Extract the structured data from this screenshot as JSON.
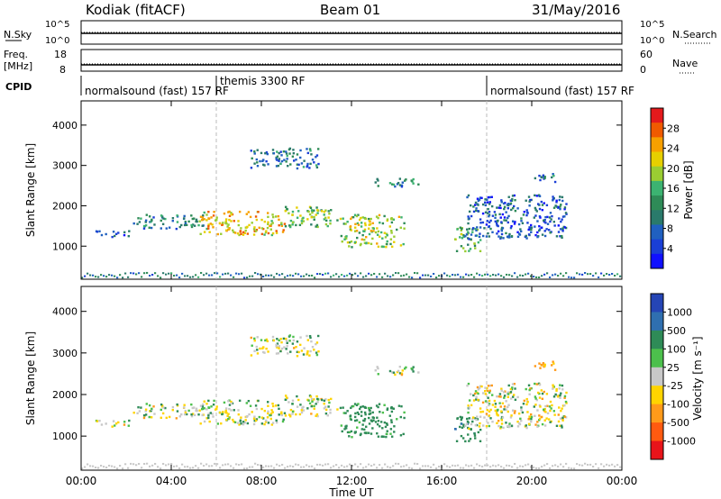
{
  "header": {
    "station": "Kodiak (fitACF)",
    "beam": "Beam 01",
    "date": "31/May/2016"
  },
  "status_panels": {
    "nsky_label": "N.Sky",
    "nsky_ticks": [
      "10^5",
      "10^0"
    ],
    "nsearch_label": "N.Search",
    "nsearch_ticks": [
      "10^5",
      "10^0"
    ],
    "freq_label_line1": "Freq.",
    "freq_label_line2": "[MHz]",
    "freq_ticks": [
      "18",
      "8"
    ],
    "nave_label": "Nave",
    "nave_ticks": [
      "60",
      "0"
    ],
    "cpid_label": "CPID",
    "cpid_segments": [
      {
        "label": "normalsound (fast) 157 RF",
        "start_hour": 0
      },
      {
        "label": "themis 3300 RF",
        "start_hour": 6
      },
      {
        "label": "normalsound (fast) 157 RF",
        "start_hour": 18
      }
    ]
  },
  "power_colorbar": {
    "label": "Power [dB]",
    "ticks": [
      "28",
      "24",
      "20",
      "16",
      "12",
      "8",
      "4"
    ],
    "colors": [
      "#e41a1c",
      "#f05a00",
      "#f7a000",
      "#e6cf00",
      "#9acd32",
      "#3cb371",
      "#2e8b57",
      "#2a7a6b",
      "#2060c0",
      "#1a3fd6",
      "#1010ff"
    ]
  },
  "velocity_colorbar": {
    "label": "Velocity [m s⁻¹]",
    "ticks": [
      "1000",
      "500",
      "100",
      "25",
      "-25",
      "-100",
      "-500",
      "-1000"
    ],
    "colors": [
      "#2545b5",
      "#2f6fb0",
      "#2e8b57",
      "#4cc04c",
      "#c8c8c8",
      "#ffd400",
      "#ff9a1a",
      "#ff5a10",
      "#e8141a"
    ]
  },
  "chart_data": {
    "type": "heatmap",
    "x_axis": {
      "label": "Time UT",
      "range_hours": [
        0,
        24
      ],
      "ticks": [
        "00:00",
        "04:00",
        "08:00",
        "12:00",
        "16:00",
        "20:00",
        "00:00"
      ]
    },
    "y_axis": {
      "label": "Slant Range [km]",
      "range_km": [
        180,
        4600
      ],
      "ticks": [
        "1000",
        "2000",
        "3000",
        "4000"
      ]
    },
    "panels": [
      {
        "name": "Power",
        "quantity": "Power [dB]"
      },
      {
        "name": "Velocity",
        "quantity": "Velocity [m s⁻¹]"
      }
    ],
    "echo_regions": [
      {
        "t_start": 2.3,
        "t_end": 5.5,
        "range_start": 1450,
        "range_end": 1800,
        "power": 10,
        "velocity": 0
      },
      {
        "t_start": 5.2,
        "t_end": 9.0,
        "range_start": 1300,
        "range_end": 1900,
        "power": 22,
        "velocity": 10
      },
      {
        "t_start": 9.0,
        "t_end": 11.5,
        "range_start": 1500,
        "range_end": 2000,
        "power": 16,
        "velocity": 0
      },
      {
        "t_start": 11.5,
        "t_end": 14.3,
        "range_start": 1000,
        "range_end": 1800,
        "power": 18,
        "velocity": 150
      },
      {
        "t_start": 7.5,
        "t_end": 10.5,
        "range_start": 2950,
        "range_end": 3450,
        "power": 8,
        "velocity": 0
      },
      {
        "t_start": 13.0,
        "t_end": 15.0,
        "range_start": 2500,
        "range_end": 2700,
        "power": 10,
        "velocity": 0
      },
      {
        "t_start": 16.5,
        "t_end": 17.7,
        "range_start": 900,
        "range_end": 1500,
        "power": 14,
        "velocity": 200
      },
      {
        "t_start": 17.0,
        "t_end": 21.5,
        "range_start": 1200,
        "range_end": 2300,
        "power": 6,
        "velocity": -10
      },
      {
        "t_start": 20.0,
        "t_end": 21.0,
        "range_start": 2600,
        "range_end": 2850,
        "power": 8,
        "velocity": -150
      },
      {
        "t_start": 0.5,
        "t_end": 2.2,
        "range_start": 1250,
        "range_end": 1400,
        "power": 6,
        "velocity": 0
      }
    ]
  }
}
